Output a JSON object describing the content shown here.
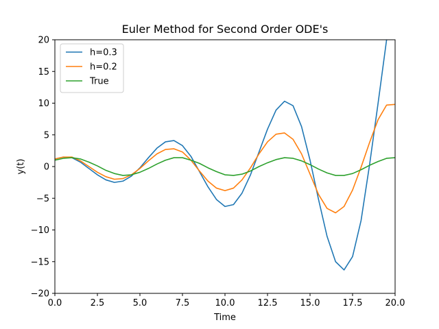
{
  "chart_data": {
    "type": "line",
    "title": "Euler Method for Second Order ODE's",
    "xlabel": "Time",
    "ylabel": "y(t)",
    "xlim": [
      0,
      20
    ],
    "ylim": [
      -20,
      20
    ],
    "xticks": [
      "0.0",
      "2.5",
      "5.0",
      "7.5",
      "10.0",
      "12.5",
      "15.0",
      "17.5",
      "20.0"
    ],
    "yticks": [
      "−20",
      "−15",
      "−10",
      "−5",
      "0",
      "5",
      "10",
      "15",
      "20"
    ],
    "legend_position": "top-left",
    "grid": false,
    "series": [
      {
        "name": "h=0.3",
        "color": "#1f77b4",
        "x": [
          0,
          0.5,
          1.0,
          1.5,
          2.0,
          2.5,
          3.0,
          3.5,
          4.0,
          4.5,
          5.0,
          5.5,
          6.0,
          6.5,
          7.0,
          7.5,
          8.0,
          8.5,
          9.0,
          9.5,
          10.0,
          10.5,
          11.0,
          11.5,
          12.0,
          12.5,
          13.0,
          13.5,
          14.0,
          14.5,
          15.0,
          15.5,
          16.0,
          16.5,
          17.0,
          17.5,
          18.0,
          18.5,
          19.0,
          19.5
        ],
        "y": [
          1.2,
          1.5,
          1.4,
          0.7,
          -0.3,
          -1.3,
          -2.1,
          -2.5,
          -2.3,
          -1.5,
          -0.2,
          1.4,
          2.9,
          3.9,
          4.1,
          3.3,
          1.6,
          -0.8,
          -3.2,
          -5.2,
          -6.3,
          -6.0,
          -4.2,
          -1.3,
          2.3,
          5.9,
          8.9,
          10.3,
          9.6,
          6.3,
          1.0,
          -5.2,
          -11.0,
          -15.0,
          -16.3,
          -14.2,
          -8.5,
          0.3,
          10.0,
          20.0
        ]
      },
      {
        "name": "h=0.2",
        "color": "#ff7f0e",
        "x": [
          0,
          0.5,
          1.0,
          1.5,
          2.0,
          2.5,
          3.0,
          3.5,
          4.0,
          4.5,
          5.0,
          5.5,
          6.0,
          6.5,
          7.0,
          7.5,
          8.0,
          8.5,
          9.0,
          9.5,
          10.0,
          10.5,
          11.0,
          11.5,
          12.0,
          12.5,
          13.0,
          13.5,
          14.0,
          14.5,
          15.0,
          15.5,
          16.0,
          16.5,
          17.0,
          17.5,
          18.0,
          18.5,
          19.0,
          19.5,
          20.0
        ],
        "y": [
          1.2,
          1.5,
          1.5,
          0.9,
          0.0,
          -0.9,
          -1.6,
          -2.0,
          -1.9,
          -1.3,
          -0.3,
          0.9,
          2.0,
          2.7,
          2.8,
          2.3,
          1.0,
          -0.7,
          -2.3,
          -3.4,
          -3.8,
          -3.4,
          -2.1,
          -0.2,
          2.0,
          3.9,
          5.1,
          5.3,
          4.3,
          2.0,
          -1.2,
          -4.4,
          -6.6,
          -7.3,
          -6.3,
          -3.7,
          -0.1,
          3.8,
          7.4,
          9.7,
          9.8
        ]
      },
      {
        "name": "True",
        "color": "#2ca02c",
        "x": [
          0,
          0.5,
          1.0,
          1.5,
          2.0,
          2.5,
          3.0,
          3.5,
          4.0,
          4.5,
          5.0,
          5.5,
          6.0,
          6.5,
          7.0,
          7.5,
          8.0,
          8.5,
          9.0,
          9.5,
          10.0,
          10.5,
          11.0,
          11.5,
          12.0,
          12.5,
          13.0,
          13.5,
          14.0,
          14.5,
          15.0,
          15.5,
          16.0,
          16.5,
          17.0,
          17.5,
          18.0,
          18.5,
          19.0,
          19.5,
          20.0
        ],
        "y": [
          1.0,
          1.3,
          1.4,
          1.2,
          0.7,
          0.1,
          -0.6,
          -1.1,
          -1.4,
          -1.3,
          -0.9,
          -0.3,
          0.4,
          1.0,
          1.4,
          1.4,
          1.0,
          0.5,
          -0.2,
          -0.8,
          -1.3,
          -1.4,
          -1.2,
          -0.7,
          0.0,
          0.6,
          1.1,
          1.4,
          1.3,
          0.9,
          0.3,
          -0.4,
          -1.0,
          -1.4,
          -1.4,
          -1.1,
          -0.5,
          0.2,
          0.8,
          1.3,
          1.4
        ]
      }
    ]
  }
}
